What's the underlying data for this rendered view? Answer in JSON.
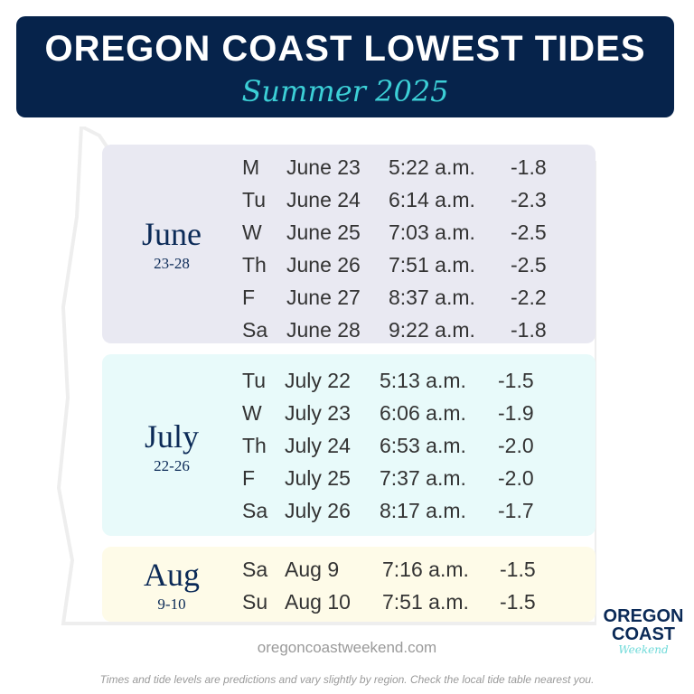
{
  "header": {
    "title": "OREGON COAST LOWEST TIDES",
    "subtitle": "Summer 2025"
  },
  "colors": {
    "header_bg": "#06234b",
    "accent": "#3ccfd6",
    "june_bg": "#e9e9f2",
    "july_bg": "#e8fafa",
    "aug_bg": "#fefbe8"
  },
  "groups": [
    {
      "month": "June",
      "range": "23-28",
      "rows": [
        {
          "day": "M",
          "date": "June 23",
          "time": "5:22 a.m.",
          "level": "-1.8"
        },
        {
          "day": "Tu",
          "date": "June 24",
          "time": "6:14 a.m.",
          "level": "-2.3"
        },
        {
          "day": "W",
          "date": "June 25",
          "time": "7:03 a.m.",
          "level": "-2.5"
        },
        {
          "day": "Th",
          "date": "June 26",
          "time": "7:51 a.m.",
          "level": "-2.5"
        },
        {
          "day": "F",
          "date": "June 27",
          "time": "8:37 a.m.",
          "level": "-2.2"
        },
        {
          "day": "Sa",
          "date": "June 28",
          "time": "9:22 a.m.",
          "level": "-1.8"
        }
      ]
    },
    {
      "month": "July",
      "range": "22-26",
      "rows": [
        {
          "day": "Tu",
          "date": "July 22",
          "time": "5:13 a.m.",
          "level": "-1.5"
        },
        {
          "day": "W",
          "date": "July 23",
          "time": "6:06 a.m.",
          "level": "-1.9"
        },
        {
          "day": "Th",
          "date": "July 24",
          "time": "6:53 a.m.",
          "level": "-2.0"
        },
        {
          "day": "F",
          "date": "July 25",
          "time": "7:37 a.m.",
          "level": "-2.0"
        },
        {
          "day": "Sa",
          "date": "July 26",
          "time": "8:17 a.m.",
          "level": "-1.7"
        }
      ]
    },
    {
      "month": "Aug",
      "range": "9-10",
      "rows": [
        {
          "day": "Sa",
          "date": "Aug 9",
          "time": "7:16 a.m.",
          "level": "-1.5"
        },
        {
          "day": "Su",
          "date": "Aug 10",
          "time": "7:51 a.m.",
          "level": "-1.5"
        }
      ]
    }
  ],
  "footer": {
    "url": "oregoncoastweekend.com",
    "note": "Times and tide levels are predictions and vary slightly by region. Check the local tide table nearest you."
  },
  "logo": {
    "line1": "OREGON",
    "line2": "COAST",
    "line3": "Weekend"
  }
}
